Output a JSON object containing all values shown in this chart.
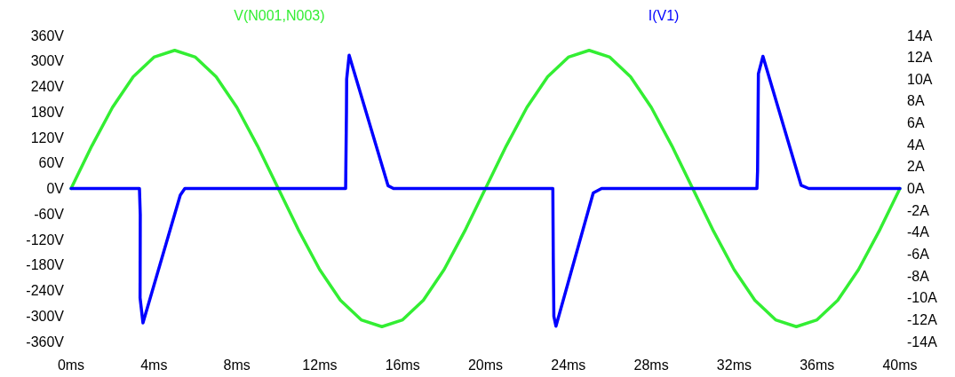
{
  "chart_data": {
    "type": "line",
    "xlim": [
      0,
      40
    ],
    "xticks": [
      {
        "value": 0,
        "label": "0ms"
      },
      {
        "value": 4,
        "label": "4ms"
      },
      {
        "value": 8,
        "label": "8ms"
      },
      {
        "value": 12,
        "label": "12ms"
      },
      {
        "value": 16,
        "label": "16ms"
      },
      {
        "value": 20,
        "label": "20ms"
      },
      {
        "value": 24,
        "label": "24ms"
      },
      {
        "value": 28,
        "label": "28ms"
      },
      {
        "value": 32,
        "label": "32ms"
      },
      {
        "value": 36,
        "label": "36ms"
      },
      {
        "value": 40,
        "label": "40ms"
      }
    ],
    "ylim": [
      -360,
      360
    ],
    "yticks": [
      {
        "value": -360,
        "label": "-360V"
      },
      {
        "value": -300,
        "label": "-300V"
      },
      {
        "value": -240,
        "label": "-240V"
      },
      {
        "value": -180,
        "label": "-180V"
      },
      {
        "value": -120,
        "label": "-120V"
      },
      {
        "value": -60,
        "label": "-60V"
      },
      {
        "value": 0,
        "label": "0V"
      },
      {
        "value": 60,
        "label": "60V"
      },
      {
        "value": 120,
        "label": "120V"
      },
      {
        "value": 180,
        "label": "180V"
      },
      {
        "value": 240,
        "label": "240V"
      },
      {
        "value": 300,
        "label": "300V"
      },
      {
        "value": 360,
        "label": "360V"
      }
    ],
    "y2lim": [
      -14,
      14
    ],
    "y2ticks": [
      {
        "value": -14,
        "label": "-14A"
      },
      {
        "value": -12,
        "label": "-12A"
      },
      {
        "value": -10,
        "label": "-10A"
      },
      {
        "value": -8,
        "label": "-8A"
      },
      {
        "value": -6,
        "label": "-6A"
      },
      {
        "value": -4,
        "label": "-4A"
      },
      {
        "value": -2,
        "label": "-2A"
      },
      {
        "value": 0,
        "label": "0A"
      },
      {
        "value": 2,
        "label": "2A"
      },
      {
        "value": 4,
        "label": "4A"
      },
      {
        "value": 6,
        "label": "6A"
      },
      {
        "value": 8,
        "label": "8A"
      },
      {
        "value": 10,
        "label": "10A"
      },
      {
        "value": 12,
        "label": "12A"
      },
      {
        "value": 14,
        "label": "14A"
      }
    ],
    "grid": false,
    "legend": "top",
    "marker": "none",
    "line_style": "solid",
    "series": [
      {
        "name": "V(N001,N003)",
        "color": "#33ee33",
        "x": [
          0,
          1,
          2,
          3,
          4,
          5,
          6,
          7,
          8,
          9,
          10,
          11,
          12,
          13,
          14,
          15,
          16,
          17,
          18,
          19,
          20,
          21,
          22,
          23,
          24,
          25,
          26,
          27,
          28,
          29,
          30,
          31,
          32,
          33,
          34,
          35,
          36,
          37,
          38,
          39,
          40
        ],
        "values": [
          0,
          100,
          191,
          263,
          309,
          325,
          309,
          263,
          191,
          100,
          0,
          -100,
          -191,
          -263,
          -309,
          -325,
          -309,
          -263,
          -191,
          -100,
          0,
          100,
          191,
          263,
          309,
          325,
          309,
          263,
          191,
          100,
          0,
          -100,
          -191,
          -263,
          -309,
          -325,
          -309,
          -263,
          -191,
          -100,
          0
        ]
      },
      {
        "name": "I(V1)",
        "color": "#0000ff",
        "axis": "y2",
        "x": [
          0,
          3.3,
          3.34,
          3.33,
          3.47,
          5.27,
          5.49,
          13.25,
          13.29,
          13.3,
          13.42,
          15.3,
          15.56,
          23.25,
          23.27,
          23.3,
          23.4,
          25.2,
          25.6,
          33.1,
          33.13,
          33.17,
          33.39,
          35.23,
          35.6,
          40
        ],
        "values": [
          0,
          0,
          -2.4,
          -10,
          -12.3,
          -0.6,
          0,
          0,
          7,
          10,
          12.2,
          0.25,
          0,
          0,
          -6,
          -11.7,
          -12.6,
          -0.4,
          0,
          0,
          1.6,
          10.5,
          12.1,
          0.3,
          0,
          0
        ]
      }
    ]
  }
}
